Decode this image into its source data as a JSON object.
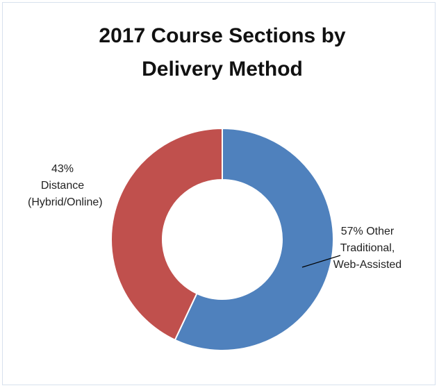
{
  "chart_data": {
    "type": "donut",
    "title": "2017 Course Sections by Delivery Method",
    "categories": [
      "Other Traditional, Web-Assisted",
      "Distance (Hybrid/Online)"
    ],
    "values": [
      57,
      43
    ],
    "value_labels": [
      "57%",
      "43%"
    ],
    "colors": [
      "#4f81bd",
      "#c0504d"
    ]
  }
}
